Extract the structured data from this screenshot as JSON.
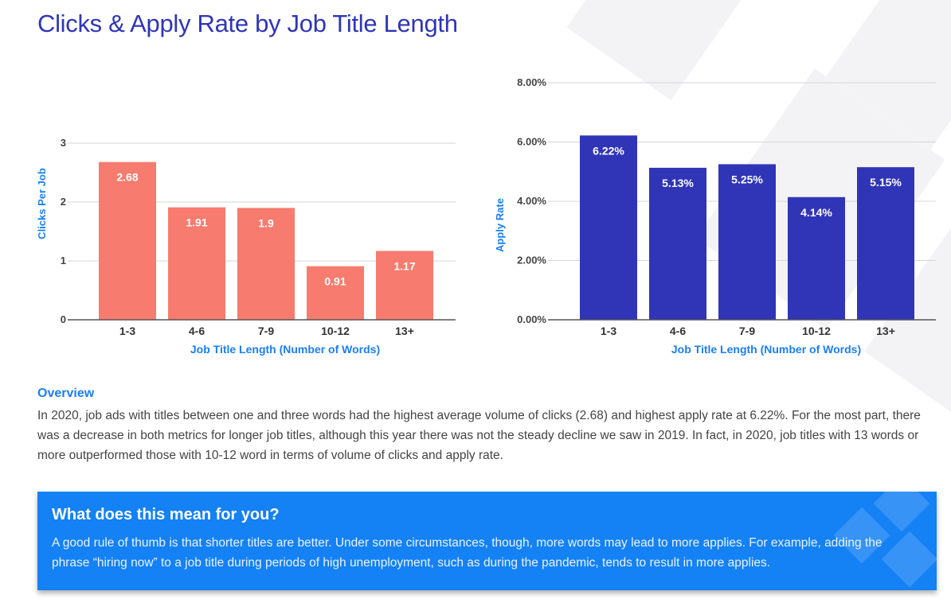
{
  "title": "Clicks & Apply Rate by Job Title Length",
  "chart_data": [
    {
      "type": "bar",
      "categories": [
        "1-3",
        "4-6",
        "7-9",
        "10-12",
        "13+"
      ],
      "values": [
        2.68,
        1.91,
        1.9,
        0.91,
        1.17
      ],
      "data_labels": [
        "2.68",
        "1.91",
        "1.9",
        "0.91",
        "1.17"
      ],
      "xlabel": "Job Title Length (Number of Words)",
      "ylabel": "Clicks Per Job",
      "ylim": [
        0,
        3
      ],
      "yticks": [
        0,
        1,
        2,
        3
      ],
      "ytick_labels": [
        "0",
        "1",
        "2",
        "3"
      ],
      "grid": true,
      "color": "#f77b6e"
    },
    {
      "type": "bar",
      "categories": [
        "1-3",
        "4-6",
        "7-9",
        "10-12",
        "13+"
      ],
      "values": [
        6.22,
        5.13,
        5.25,
        4.14,
        5.15
      ],
      "data_labels": [
        "6.22%",
        "5.13%",
        "5.25%",
        "4.14%",
        "5.15%"
      ],
      "xlabel": "Job Title Length (Number of Words)",
      "ylabel": "Apply Rate",
      "ylim": [
        0,
        8
      ],
      "yticks": [
        0,
        2,
        4,
        6,
        8
      ],
      "ytick_labels": [
        "0.00%",
        "2.00%",
        "4.00%",
        "6.00%",
        "8.00%"
      ],
      "grid": true,
      "color": "#3035b7"
    }
  ],
  "overview": {
    "heading": "Overview",
    "text": "In 2020, job ads with titles between one and three words had the highest average volume of clicks (2.68) and highest apply rate at 6.22%. For the most part, there was a decrease in both metrics for longer job titles, although this year there was not the steady decline we saw in 2019. In fact, in 2020, job titles with 13 words or more outperformed those with 10-12 word in terms of volume of clicks and apply rate."
  },
  "callout": {
    "heading": "What does this mean for you?",
    "text": "A good rule of thumb is that shorter titles are better. Under some circumstances, though, more words may lead to more applies. For example, adding the phrase “hiring now” to a job title during periods of high unemployment, such as during the pandemic, tends to result in more applies."
  },
  "colors": {
    "title": "#2f35b8",
    "accent": "#1a7ff5",
    "callout_bg": "#1481f5"
  }
}
